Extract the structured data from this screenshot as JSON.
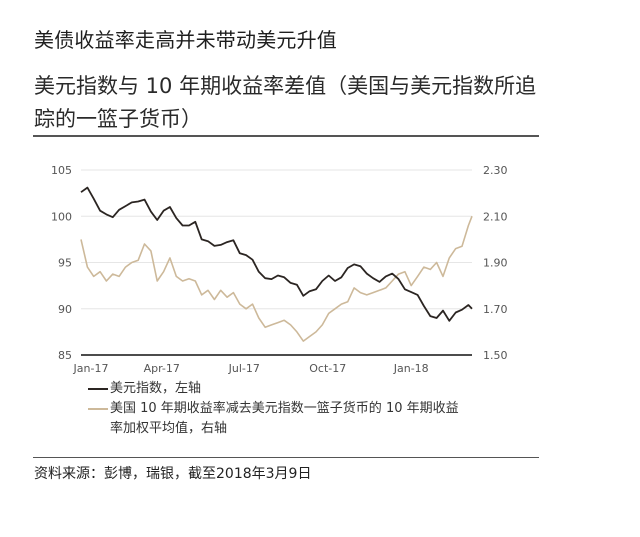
{
  "headline": "美债收益率走高并未带动美元升值",
  "subtitle": "美元指数与 10 年期收益率差值（美国与美元指数所追踪的一篮子货币）",
  "legend": {
    "dxy": "美元指数，左轴",
    "spread": "美国 10 年期收益率减去美元指数一篮子货币的 10 年期收益率加权平均值，右轴"
  },
  "source": "资料来源：彭博，瑞银，截至2018年3月9日",
  "colors": {
    "dxy": "#2b2522",
    "spread": "#cdb99a",
    "grid": "#e6e6e6",
    "axis": "#111111",
    "tick": "#555555"
  },
  "chart_data": {
    "type": "line",
    "title": "美元指数与 10 年期收益率差值（美国与美元指数所追踪的一篮子货币）",
    "xlabel": "",
    "ylabel_left": "美元指数",
    "ylabel_right": "10 年期收益率差值",
    "x_tick_labels": [
      "Jan-17",
      "Apr-17",
      "Jul-17",
      "Oct-17",
      "Jan-18"
    ],
    "y_left_ticks": [
      "85",
      "90",
      "95",
      "100",
      "105"
    ],
    "y_right_ticks": [
      "1.50",
      "1.70",
      "1.90",
      "2.10",
      "2.30"
    ],
    "ylim_left": [
      85,
      105
    ],
    "ylim_right": [
      1.5,
      2.3
    ],
    "grid": true,
    "legend_position": "bottom",
    "x_range": [
      "2017-01-02",
      "2018-03-09"
    ],
    "x": [
      "2017-01-02",
      "2017-01-09",
      "2017-01-16",
      "2017-01-23",
      "2017-01-30",
      "2017-02-06",
      "2017-02-13",
      "2017-02-20",
      "2017-02-27",
      "2017-03-06",
      "2017-03-13",
      "2017-03-20",
      "2017-03-27",
      "2017-04-03",
      "2017-04-10",
      "2017-04-17",
      "2017-04-24",
      "2017-05-01",
      "2017-05-08",
      "2017-05-15",
      "2017-05-22",
      "2017-05-29",
      "2017-06-05",
      "2017-06-12",
      "2017-06-19",
      "2017-06-26",
      "2017-07-03",
      "2017-07-10",
      "2017-07-17",
      "2017-07-24",
      "2017-07-31",
      "2017-08-07",
      "2017-08-14",
      "2017-08-21",
      "2017-08-28",
      "2017-09-04",
      "2017-09-11",
      "2017-09-18",
      "2017-09-25",
      "2017-10-02",
      "2017-10-09",
      "2017-10-16",
      "2017-10-23",
      "2017-10-30",
      "2017-11-06",
      "2017-11-13",
      "2017-11-20",
      "2017-11-27",
      "2017-12-04",
      "2017-12-11",
      "2017-12-18",
      "2017-12-25",
      "2018-01-01",
      "2018-01-08",
      "2018-01-15",
      "2018-01-22",
      "2018-01-29",
      "2018-02-05",
      "2018-02-12",
      "2018-02-19",
      "2018-02-26",
      "2018-03-05",
      "2018-03-09"
    ],
    "series": [
      {
        "name": "美元指数，左轴",
        "axis": "left",
        "values": [
          102.6,
          103.1,
          101.9,
          100.6,
          100.2,
          99.9,
          100.7,
          101.1,
          101.5,
          101.6,
          101.8,
          100.5,
          99.6,
          100.6,
          101.0,
          99.8,
          99.0,
          99.0,
          99.4,
          97.5,
          97.3,
          96.8,
          96.9,
          97.2,
          97.4,
          96.0,
          95.8,
          95.3,
          94.0,
          93.3,
          93.2,
          93.6,
          93.4,
          92.8,
          92.6,
          91.4,
          91.9,
          92.1,
          93.0,
          93.6,
          93.0,
          93.4,
          94.4,
          94.8,
          94.6,
          93.8,
          93.3,
          92.9,
          93.5,
          93.8,
          93.2,
          92.1,
          91.8,
          91.5,
          90.3,
          89.2,
          89.0,
          89.8,
          88.7,
          89.6,
          89.9,
          90.4,
          90.0
        ]
      },
      {
        "name": "美国 10 年期收益率减去美元指数一篮子货币的 10 年期收益率加权平均值，右轴",
        "axis": "right",
        "values": [
          2.0,
          1.88,
          1.84,
          1.86,
          1.82,
          1.85,
          1.84,
          1.88,
          1.9,
          1.91,
          1.98,
          1.95,
          1.82,
          1.86,
          1.92,
          1.84,
          1.82,
          1.83,
          1.82,
          1.76,
          1.78,
          1.74,
          1.78,
          1.75,
          1.77,
          1.72,
          1.7,
          1.72,
          1.66,
          1.62,
          1.63,
          1.64,
          1.65,
          1.63,
          1.6,
          1.56,
          1.58,
          1.6,
          1.63,
          1.68,
          1.7,
          1.72,
          1.73,
          1.79,
          1.77,
          1.76,
          1.77,
          1.78,
          1.79,
          1.82,
          1.85,
          1.86,
          1.8,
          1.84,
          1.88,
          1.87,
          1.9,
          1.84,
          1.92,
          1.96,
          1.97,
          2.06,
          2.1
        ]
      }
    ]
  }
}
